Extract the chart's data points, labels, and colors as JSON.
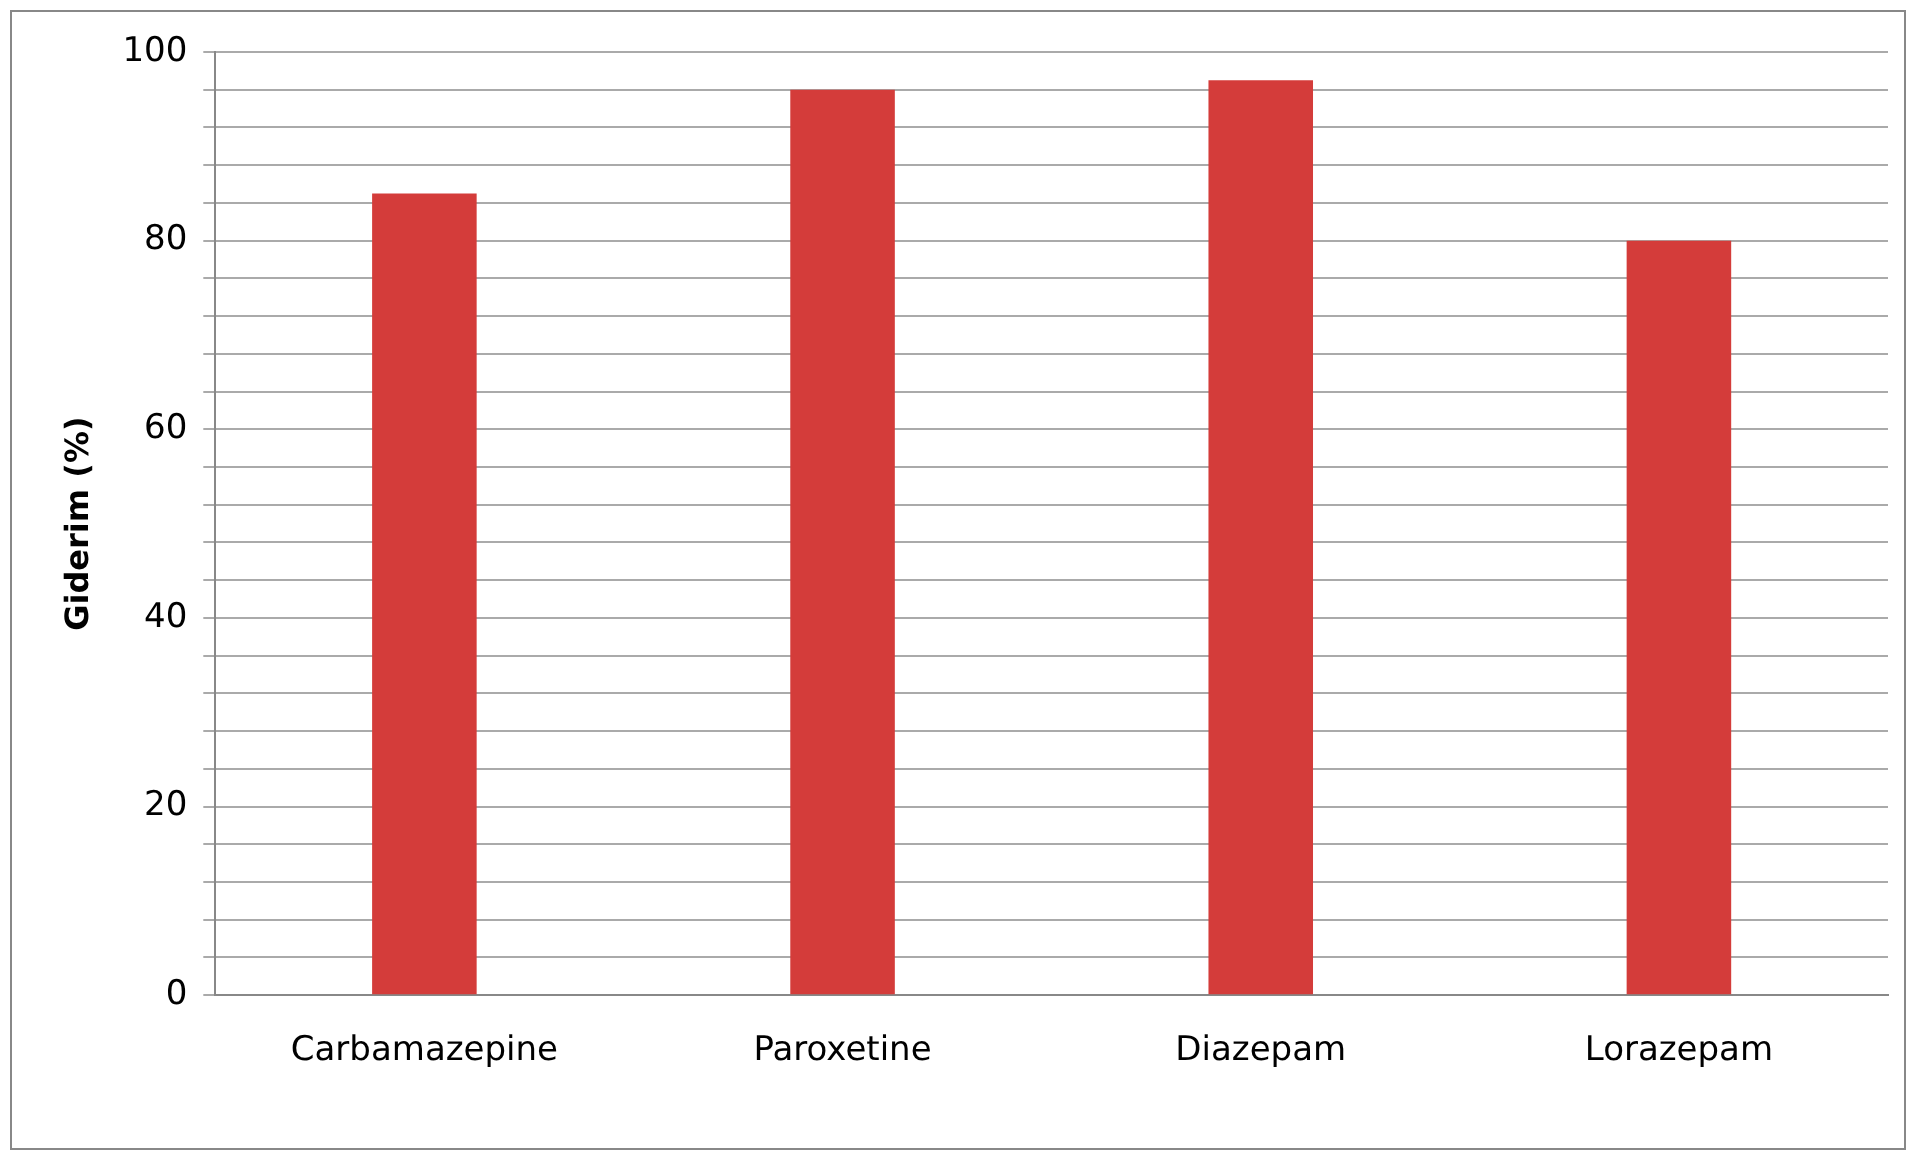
{
  "chart_data": {
    "type": "bar",
    "ylabel": "Giderim (%)",
    "categories": [
      "Carbamazepine",
      "Paroxetine",
      "Diazepam",
      "Lorazepam"
    ],
    "values": [
      85,
      96,
      97,
      80
    ],
    "color": "#d43c3a",
    "ylim": [
      0,
      100
    ],
    "yticks": [
      0,
      {
        "value": 4,
        "label": null
      },
      {
        "value": 8,
        "label": null
      },
      {
        "value": 12,
        "label": null
      },
      {
        "value": 16,
        "label": null
      },
      20,
      {
        "value": 24,
        "label": null
      },
      {
        "value": 28,
        "label": null
      },
      {
        "value": 32,
        "label": null
      },
      {
        "value": 36,
        "label": null
      },
      40,
      {
        "value": 44,
        "label": null
      },
      {
        "value": 48,
        "label": null
      },
      {
        "value": 52,
        "label": null
      },
      {
        "value": 56,
        "label": null
      },
      60,
      {
        "value": 64,
        "label": null
      },
      {
        "value": 68,
        "label": null
      },
      {
        "value": 72,
        "label": null
      },
      {
        "value": 76,
        "label": null
      },
      80,
      {
        "value": 84,
        "label": null
      },
      {
        "value": 88,
        "label": null
      },
      {
        "value": 92,
        "label": null
      },
      {
        "value": 96,
        "label": null
      },
      100
    ],
    "grid": "y",
    "legend": false
  }
}
